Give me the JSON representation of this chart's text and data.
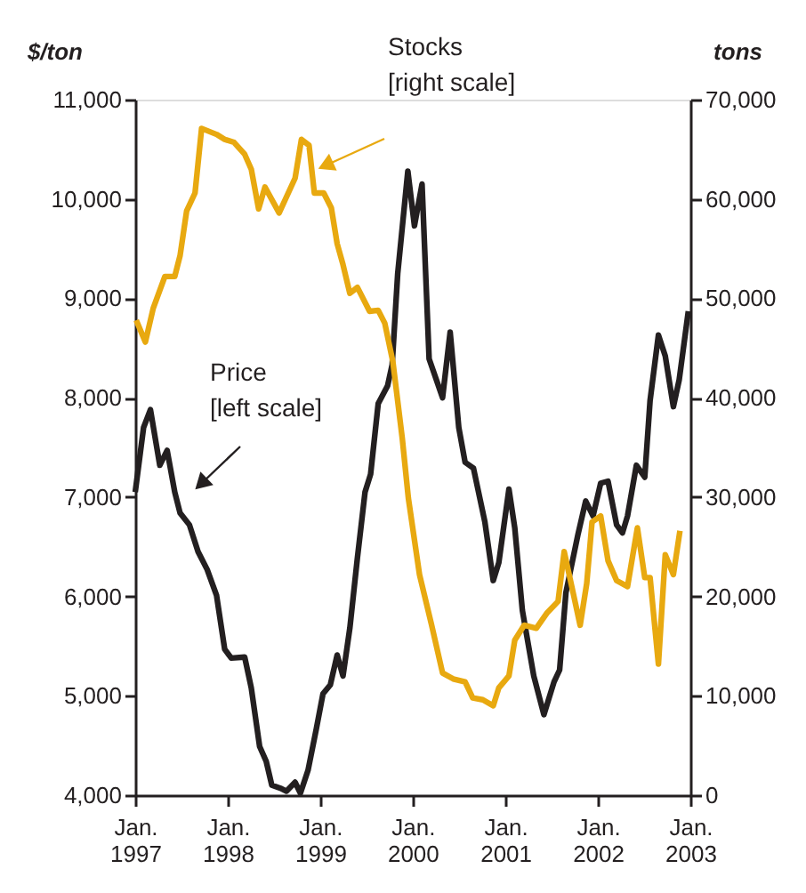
{
  "chart_data": {
    "type": "line",
    "ylabel": "$/ton",
    "y2label": "tons",
    "annotations": [
      "Stocks\n[right scale]",
      "Price\n[left scale]"
    ],
    "xlim": [
      "1997-01-01",
      "2003-01-01"
    ],
    "xticks": [
      {
        "value": "1997-01-01",
        "label": "Jan. 1997"
      },
      {
        "value": "1998-01-01",
        "label": "Jan. 1998"
      },
      {
        "value": "1999-01-01",
        "label": "Jan. 1999"
      },
      {
        "value": "2000-01-01",
        "label": "Jan. 2000"
      },
      {
        "value": "2001-01-01",
        "label": "Jan. 2001"
      },
      {
        "value": "2002-01-01",
        "label": "Jan. 2002"
      },
      {
        "value": "2003-01-01",
        "label": "Jan. 2003"
      }
    ],
    "ylim": [
      4000,
      11000
    ],
    "yticks": [
      {
        "value": 4000,
        "label": "4,000"
      },
      {
        "value": 5000,
        "label": "5,000"
      },
      {
        "value": 6000,
        "label": "6,000"
      },
      {
        "value": 7000,
        "label": "7,000"
      },
      {
        "value": 8000,
        "label": "8,000"
      },
      {
        "value": 9000,
        "label": "9,000"
      },
      {
        "value": 10000,
        "label": "10,000"
      },
      {
        "value": 11000,
        "label": "11,000"
      }
    ],
    "y2lim": [
      0,
      70000
    ],
    "y2ticks": [
      0,
      {
        "value": 10000,
        "label": "10,000"
      },
      {
        "value": 20000,
        "label": "20,000"
      },
      {
        "value": 30000,
        "label": "30,000"
      },
      {
        "value": 40000,
        "label": "40,000"
      },
      {
        "value": 50000,
        "label": "50,000"
      },
      {
        "value": 60000,
        "label": "60,000"
      },
      {
        "value": 70000,
        "label": "70,000"
      }
    ],
    "grid": false,
    "legend": false,
    "marker": "none",
    "line_style": "solid",
    "series": [
      {
        "color": "#231f20",
        "axis": "y",
        "x": [
          "1997-01-01",
          "1997-02-03",
          "1997-03-02",
          "1997-04-08",
          "1997-05-07",
          "1997-06-06",
          "1997-06-27",
          "1997-08-03",
          "1997-09-06",
          "1997-10-12",
          "1997-11-18",
          "1997-12-20",
          "1998-01-15",
          "1998-03-09",
          "1998-04-04",
          "1998-05-07",
          "1998-06-02",
          "1998-06-24",
          "1998-07-28",
          "1998-08-21",
          "1998-09-24",
          "1998-10-15",
          "1998-11-14",
          "1998-12-17",
          "1999-01-12",
          "1999-02-10",
          "1999-03-09",
          "1999-04-01",
          "1999-04-28",
          "1999-05-28",
          "1999-06-27",
          "1999-07-19",
          "1999-08-18",
          "1999-09-24",
          "1999-10-12",
          "1999-11-03",
          "1999-12-13",
          "2000-01-08",
          "2000-02-07",
          "2000-03-06",
          "2000-04-28",
          "2000-05-28",
          "2000-07-01",
          "2000-07-26",
          "2000-08-28",
          "2000-10-12",
          "2000-11-14",
          "2000-12-06",
          "2001-01-15",
          "2001-02-07",
          "2001-03-09",
          "2001-04-23",
          "2001-06-02",
          "2001-07-12",
          "2001-08-03",
          "2001-08-28",
          "2001-10-15",
          "2001-11-14",
          "2001-12-13",
          "2002-01-12",
          "2002-02-10",
          "2002-03-16",
          "2002-04-08",
          "2002-04-28",
          "2002-06-02",
          "2002-07-05",
          "2002-07-26",
          "2002-08-28",
          "2002-09-24",
          "2002-10-26",
          "2002-11-18",
          "2002-12-24"
        ],
        "values": [
          7050,
          7700,
          7880,
          7320,
          7470,
          7050,
          6840,
          6720,
          6450,
          6270,
          6010,
          5470,
          5380,
          5390,
          5080,
          4490,
          4340,
          4100,
          4070,
          4040,
          4130,
          4020,
          4250,
          4670,
          5020,
          5110,
          5410,
          5200,
          5680,
          6390,
          7050,
          7230,
          7940,
          8120,
          8330,
          9250,
          10280,
          9730,
          10150,
          8390,
          8000,
          8660,
          7700,
          7350,
          7290,
          6750,
          6160,
          6340,
          7080,
          6690,
          5860,
          5200,
          4810,
          5140,
          5260,
          6040,
          6630,
          6960,
          6810,
          7140,
          7160,
          6720,
          6640,
          6810,
          7320,
          7200,
          7970,
          8630,
          8420,
          7910,
          8180,
          8870
        ]
      },
      {
        "color": "#e8a910",
        "axis": "y2",
        "x": [
          "1997-01-05",
          "1997-02-10",
          "1997-03-13",
          "1997-04-28",
          "1997-06-06",
          "1997-06-27",
          "1997-07-23",
          "1997-08-25",
          "1997-09-20",
          "1997-11-18",
          "1997-12-20",
          "1998-01-26",
          "1998-03-09",
          "1998-04-04",
          "1998-05-03",
          "1998-05-28",
          "1998-07-23",
          "1998-09-24",
          "1998-10-19",
          "1998-11-18",
          "1998-12-09",
          "1999-01-15",
          "1999-02-14",
          "1999-03-09",
          "1999-04-01",
          "1999-04-28",
          "1999-05-28",
          "1999-07-15",
          "1999-08-18",
          "1999-09-13",
          "1999-10-15",
          "1999-11-21",
          "1999-12-15",
          "2000-01-28",
          "2000-03-16",
          "2000-04-28",
          "2000-06-09",
          "2000-07-26",
          "2000-08-25",
          "2000-10-04",
          "2000-11-14",
          "2000-12-06",
          "2001-01-15",
          "2001-02-07",
          "2001-03-16",
          "2001-05-03",
          "2001-06-13",
          "2001-07-28",
          "2001-08-21",
          "2001-09-20",
          "2001-10-23",
          "2001-11-18",
          "2001-12-09",
          "2002-01-12",
          "2002-02-10",
          "2002-03-16",
          "2002-04-28",
          "2002-06-06",
          "2002-07-05",
          "2002-07-26",
          "2002-08-28",
          "2002-09-24",
          "2002-10-26",
          "2002-11-21"
        ],
        "values": [
          47800,
          45600,
          49000,
          52200,
          52200,
          54300,
          58800,
          60600,
          67100,
          66500,
          66000,
          65700,
          64500,
          63000,
          59000,
          61200,
          58600,
          62100,
          66000,
          65400,
          60600,
          60600,
          59100,
          55500,
          53400,
          50500,
          51100,
          48700,
          48800,
          47500,
          43600,
          35900,
          29900,
          22200,
          17100,
          12300,
          11700,
          11400,
          9800,
          9600,
          9000,
          10800,
          12000,
          15600,
          17100,
          16800,
          18300,
          19500,
          24500,
          21000,
          17100,
          21300,
          27500,
          28100,
          23600,
          21600,
          21000,
          26900,
          21900,
          21900,
          13200,
          24200,
          22200,
          26600
        ]
      }
    ]
  }
}
